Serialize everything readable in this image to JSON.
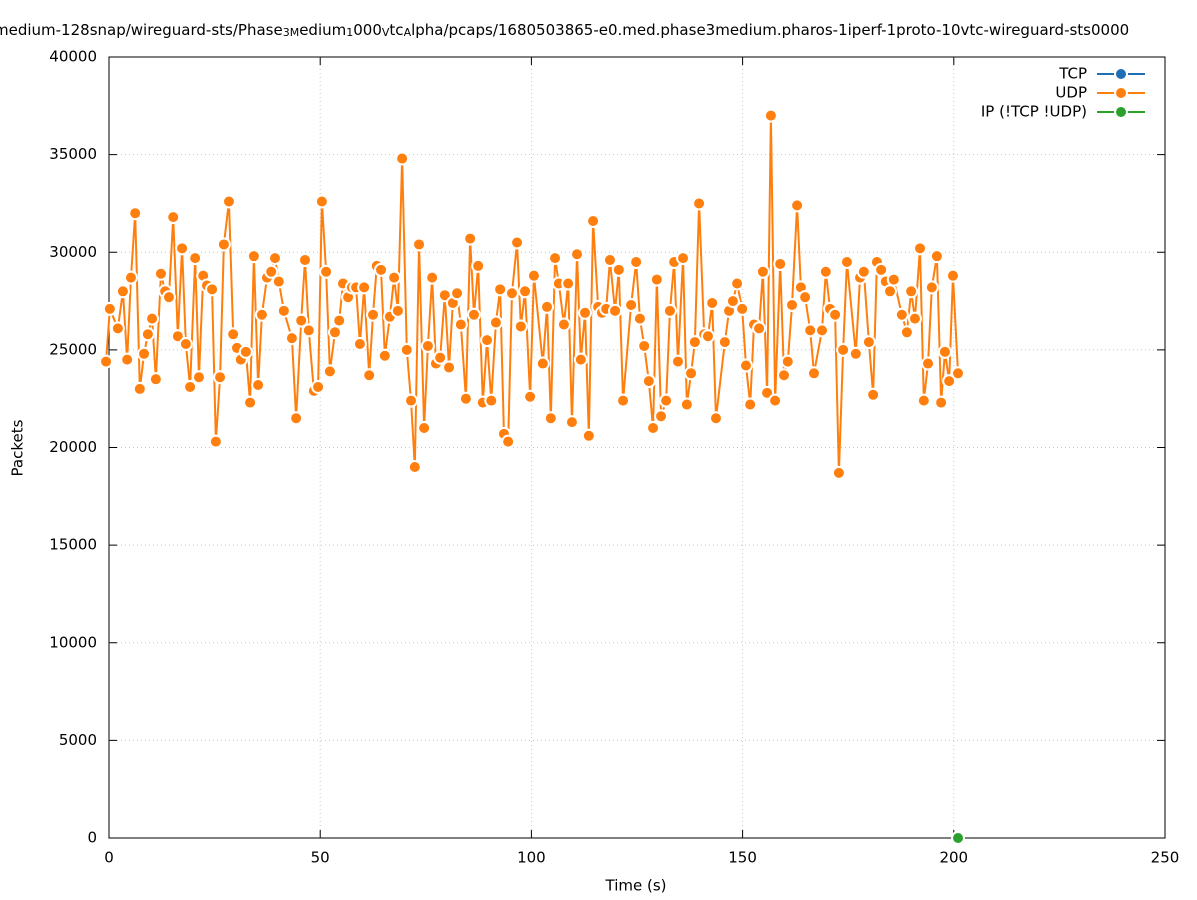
{
  "chart_data": {
    "type": "line",
    "title_parts": [
      {
        "text": "medium-128snap/wireguard-sts/Phase",
        "sub": false
      },
      {
        "text": "3M",
        "sub": true
      },
      {
        "text": "edium",
        "sub": false
      },
      {
        "text": "1",
        "sub": true
      },
      {
        "text": "000",
        "sub": false
      },
      {
        "text": "V",
        "sub": true
      },
      {
        "text": "tc",
        "sub": false
      },
      {
        "text": "A",
        "sub": true
      },
      {
        "text": "lpha/pcaps/1680503865-e0.med.phase3medium.pharos-1iperf-1proto-10vtc-wireguard-sts0000",
        "sub": false
      }
    ],
    "x_label": "Time (s)",
    "y_label": "Packets",
    "xlim": [
      0,
      250
    ],
    "xticks": [
      0,
      50,
      100,
      150,
      200,
      250
    ],
    "ylim": [
      0,
      40000
    ],
    "yticks": [
      0,
      5000,
      10000,
      15000,
      20000,
      25000,
      30000,
      35000,
      40000
    ],
    "grid": true,
    "legend": "top-right",
    "series": [
      {
        "name": "TCP",
        "color": "#1f6fb4",
        "x": [],
        "values": []
      },
      {
        "name": "UDP",
        "color": "#ff7f0e",
        "x": [
          -0.7,
          0.2,
          2.1,
          3.3,
          4.3,
          5.2,
          6.2,
          7.3,
          8.3,
          9.2,
          10.2,
          11.1,
          12.3,
          13.3,
          14.2,
          15.2,
          16.3,
          17.3,
          18.2,
          19.2,
          20.4,
          21.3,
          22.3,
          23.2,
          24.4,
          25.3,
          26.3,
          27.2,
          28.4,
          29.4,
          30.3,
          31.2,
          32.4,
          33.4,
          34.3,
          35.3,
          36.2,
          37.4,
          38.4,
          39.3,
          40.2,
          41.4,
          43.3,
          44.3,
          45.5,
          46.4,
          47.3,
          48.5,
          49.5,
          50.4,
          51.4,
          52.3,
          53.5,
          54.5,
          55.4,
          56.6,
          57.5,
          58.5,
          59.4,
          60.4,
          61.6,
          62.5,
          63.4,
          64.4,
          65.3,
          66.5,
          67.5,
          68.4,
          69.4,
          70.5,
          71.5,
          72.4,
          73.4,
          74.6,
          75.5,
          76.5,
          77.4,
          78.4,
          79.5,
          80.5,
          81.4,
          82.4,
          83.3,
          84.5,
          85.5,
          86.4,
          87.4,
          88.5,
          89.5,
          90.5,
          91.6,
          92.6,
          93.5,
          94.5,
          95.4,
          96.6,
          97.5,
          98.5,
          99.7,
          100.6,
          102.7,
          103.7,
          104.6,
          105.6,
          106.5,
          107.7,
          108.7,
          109.6,
          110.8,
          111.7,
          112.7,
          113.6,
          114.6,
          115.8,
          116.7,
          117.7,
          118.6,
          119.8,
          120.7,
          121.7,
          123.6,
          124.8,
          125.7,
          126.7,
          127.8,
          128.8,
          129.7,
          130.7,
          131.9,
          132.8,
          133.8,
          134.7,
          135.9,
          136.8,
          137.8,
          138.7,
          139.7,
          140.9,
          141.8,
          142.8,
          143.7,
          145.8,
          146.8,
          147.7,
          148.7,
          149.9,
          150.8,
          151.8,
          152.7,
          153.9,
          154.8,
          155.8,
          156.7,
          157.7,
          158.9,
          159.8,
          160.7,
          161.7,
          162.9,
          163.8,
          164.8,
          166.0,
          166.9,
          168.8,
          169.7,
          170.7,
          171.9,
          172.8,
          173.8,
          174.7,
          176.8,
          177.8,
          178.7,
          179.9,
          180.9,
          181.8,
          182.8,
          183.9,
          184.9,
          185.8,
          187.7,
          188.9,
          189.9,
          190.8,
          192.0,
          192.9,
          193.9,
          194.8,
          196.0,
          197.0,
          197.9,
          198.9,
          199.8,
          201.0
        ],
        "values": [
          24400,
          27100,
          26100,
          28000,
          24500,
          28700,
          32000,
          23000,
          24800,
          25800,
          26600,
          23500,
          28900,
          28000,
          27700,
          31800,
          25700,
          30200,
          25300,
          23100,
          29700,
          23600,
          28800,
          28300,
          28100,
          20300,
          23600,
          30400,
          32600,
          25800,
          25100,
          24500,
          24900,
          22300,
          29800,
          23200,
          26800,
          28700,
          29000,
          29700,
          28500,
          27000,
          25600,
          21500,
          26500,
          29600,
          26000,
          22900,
          23100,
          32600,
          29000,
          23900,
          25900,
          26500,
          28400,
          27700,
          28200,
          28200,
          25300,
          28200,
          23700,
          26800,
          29300,
          29100,
          24700,
          26700,
          28700,
          27000,
          34800,
          25000,
          22400,
          19000,
          30400,
          21000,
          25200,
          28700,
          24300,
          24600,
          27800,
          24100,
          27400,
          27900,
          26300,
          22500,
          30700,
          26800,
          29300,
          22300,
          25500,
          22400,
          26400,
          28100,
          20700,
          20300,
          27900,
          30500,
          26200,
          28000,
          22600,
          28800,
          24300,
          27200,
          21500,
          29700,
          28400,
          26300,
          28400,
          21300,
          29900,
          24500,
          26900,
          20600,
          31600,
          27200,
          26900,
          27100,
          29600,
          27000,
          29100,
          22400,
          27300,
          29500,
          26600,
          25200,
          23400,
          21000,
          28600,
          21600,
          22400,
          27000,
          29500,
          24400,
          29700,
          22200,
          23800,
          25400,
          32500,
          25800,
          25700,
          27400,
          21500,
          25400,
          27000,
          27500,
          28400,
          27100,
          24200,
          22200,
          26300,
          26100,
          29000,
          22800,
          37000,
          22400,
          29400,
          23700,
          24400,
          27300,
          32400,
          28200,
          27700,
          26000,
          23800,
          26000,
          29000,
          27100,
          26800,
          18700,
          25000,
          29500,
          24800,
          28700,
          29000,
          25400,
          22700,
          29500,
          29100,
          28500,
          28000,
          28600,
          26800,
          25900,
          28000,
          26600,
          30200,
          22400,
          24300,
          28200,
          29800,
          22300,
          24900,
          23400,
          28800,
          23800
        ]
      },
      {
        "name": "IP (!TCP  !UDP)",
        "color": "#2ca02c",
        "x": [
          201.0
        ],
        "values": [
          0
        ]
      }
    ]
  }
}
